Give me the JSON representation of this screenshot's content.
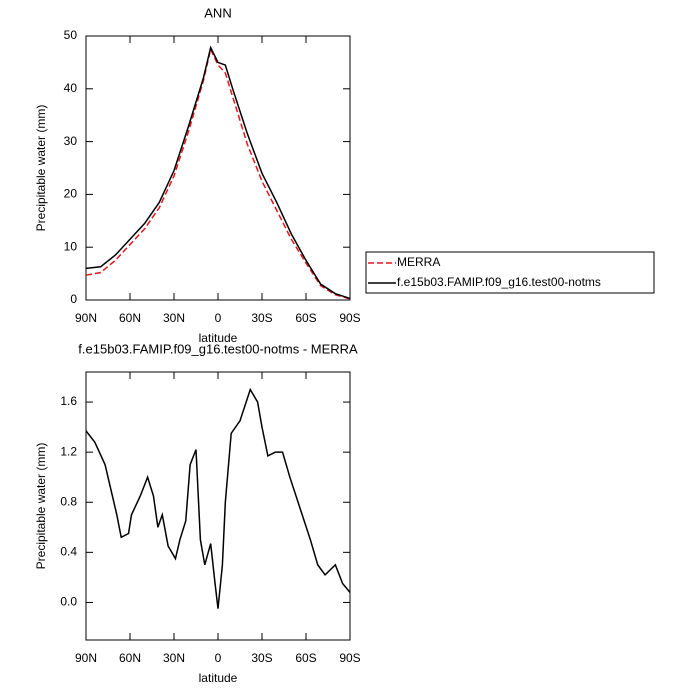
{
  "chart_data": [
    {
      "type": "line",
      "title": "ANN",
      "x_label": "latitude",
      "y_label": "Precipitable water (mm)",
      "x": [
        90,
        80,
        70,
        60,
        50,
        40,
        30,
        20,
        10,
        5,
        0,
        -5,
        -10,
        -20,
        -30,
        -40,
        -50,
        -60,
        -70,
        -80,
        -90
      ],
      "series": [
        {
          "name": "MERRA",
          "color": "#e8141b",
          "dash": true,
          "values": [
            4.7,
            5.2,
            7.5,
            10.5,
            13.5,
            17.5,
            23.5,
            32,
            41.5,
            47.5,
            44.5,
            43,
            38.5,
            29.5,
            22.5,
            17,
            11.5,
            7,
            2.7,
            1.0,
            0.2
          ]
        },
        {
          "name": "f.e15b03.FAMIP.f09_g16.test00-notms",
          "color": "#000000",
          "dash": false,
          "values": [
            6.0,
            6.3,
            8.5,
            11.5,
            14.5,
            18.5,
            24.5,
            33,
            42,
            47.8,
            45,
            44.5,
            40,
            31.5,
            24,
            18.5,
            12.5,
            7.5,
            3,
            1.2,
            0.3
          ]
        }
      ],
      "xlim": [
        90,
        -90
      ],
      "xticks": [
        {
          "value": 90,
          "label": "90N"
        },
        {
          "value": 60,
          "label": "60N"
        },
        {
          "value": 30,
          "label": "30N"
        },
        0,
        {
          "value": -30,
          "label": "30S"
        },
        {
          "value": -60,
          "label": "60S"
        },
        {
          "value": -90,
          "label": "90S"
        }
      ],
      "ylim": [
        0,
        50
      ],
      "yticks": [
        0,
        10,
        20,
        30,
        40,
        50
      ],
      "legend": "right"
    },
    {
      "type": "line",
      "title": "f.e15b03.FAMIP.f09_g16.test00-notms - MERRA",
      "x_label": "latitude",
      "y_label": "Precipitable water (mm)",
      "x": [
        90,
        84,
        77,
        72,
        69,
        66,
        61,
        59,
        53,
        48,
        44,
        41,
        38,
        34,
        29,
        26,
        22,
        19,
        15,
        12,
        9,
        5,
        2,
        0,
        -3,
        -5,
        -9,
        -15,
        -22,
        -27,
        -30,
        -34,
        -39,
        -44,
        -49,
        -56,
        -63,
        -68,
        -73,
        -80,
        -85,
        -90
      ],
      "series": [
        {
          "color": "#000000",
          "dash": false,
          "values": [
            1.37,
            1.28,
            1.1,
            0.85,
            0.7,
            0.52,
            0.55,
            0.7,
            0.85,
            1.0,
            0.85,
            0.6,
            0.7,
            0.45,
            0.35,
            0.5,
            0.65,
            1.1,
            1.22,
            0.5,
            0.3,
            0.47,
            0.15,
            -0.05,
            0.3,
            0.8,
            1.35,
            1.45,
            1.7,
            1.6,
            1.4,
            1.17,
            1.2,
            1.2,
            1.0,
            0.75,
            0.5,
            0.3,
            0.22,
            0.3,
            0.15,
            0.08
          ]
        }
      ],
      "xlim": [
        90,
        -90
      ],
      "xticks": [
        {
          "value": 90,
          "label": "90N"
        },
        {
          "value": 60,
          "label": "60N"
        },
        {
          "value": 30,
          "label": "30N"
        },
        0,
        {
          "value": -30,
          "label": "30S"
        },
        {
          "value": -60,
          "label": "60S"
        },
        {
          "value": -90,
          "label": "90S"
        }
      ],
      "ylim": [
        -0.3,
        1.84
      ],
      "yticks": [
        {
          "value": 0,
          "label": "0.0"
        },
        0.4,
        0.8,
        1.2,
        1.6
      ]
    }
  ]
}
